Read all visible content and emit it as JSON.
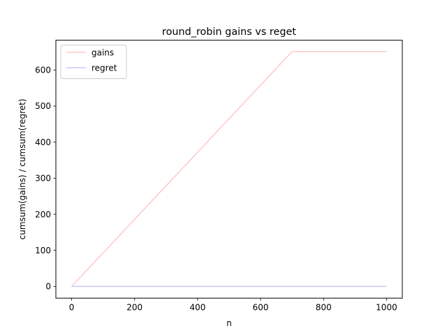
{
  "chart_data": {
    "type": "line",
    "title": "round_robin gains vs reget",
    "xlabel": "n",
    "ylabel": "cumsum(gains) / cumsum(regret)",
    "xlim": [
      -50,
      1050
    ],
    "ylim": [
      -32.5,
      682.5
    ],
    "xticks": [
      0,
      200,
      400,
      600,
      800,
      1000
    ],
    "yticks": [
      0,
      100,
      200,
      300,
      400,
      500,
      600
    ],
    "grid": false,
    "legend_position": "top-left",
    "series": [
      {
        "name": "gains",
        "color": "#ffc8c8",
        "x": [
          0,
          100,
          200,
          300,
          400,
          500,
          600,
          700,
          800,
          900,
          1000
        ],
        "y": [
          0,
          93,
          186,
          279,
          372,
          465,
          558,
          651,
          651,
          651,
          651
        ]
      },
      {
        "name": "regret",
        "color": "#c8c8ff",
        "x": [
          0,
          1000
        ],
        "y": [
          0,
          0
        ]
      }
    ]
  }
}
